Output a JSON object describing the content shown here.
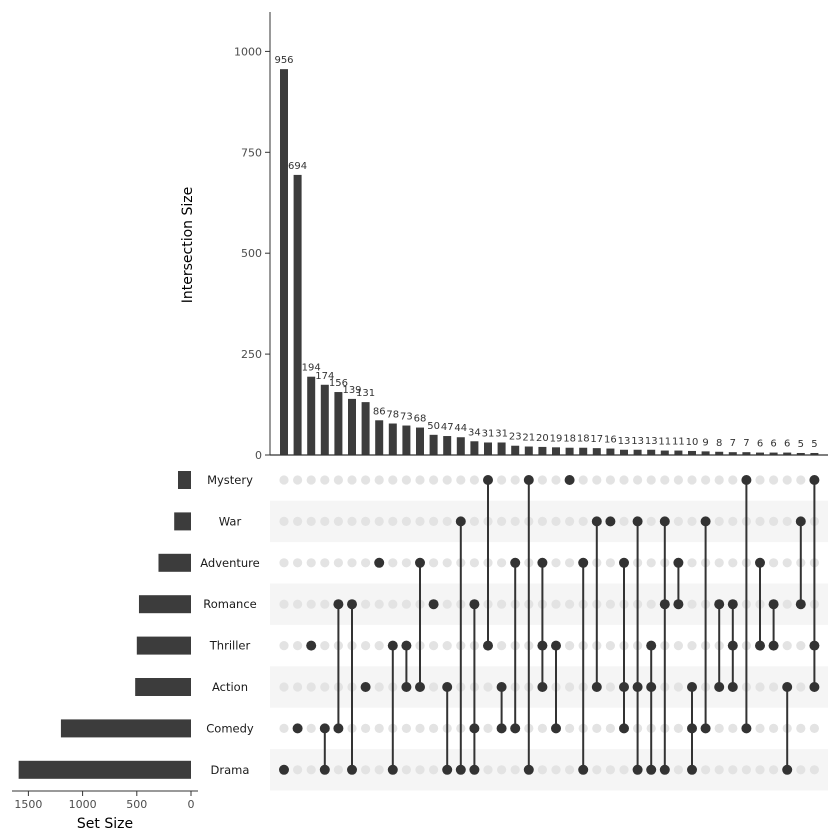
{
  "chart_data": {
    "type": "upset",
    "ylabel": "Intersection Size",
    "xlabel": "Set Size",
    "y_ticks": [
      0,
      250,
      500,
      750,
      1000
    ],
    "set_ticks": [
      1500,
      1000,
      500,
      0
    ],
    "sets": [
      "Mystery",
      "War",
      "Adventure",
      "Romance",
      "Thriller",
      "Action",
      "Comedy",
      "Drama"
    ],
    "set_sizes": [
      120,
      155,
      300,
      480,
      500,
      515,
      1200,
      1590
    ],
    "intersections": [
      {
        "size": 956,
        "label": "956",
        "sets": [
          "Drama"
        ]
      },
      {
        "size": 694,
        "label": "694",
        "sets": [
          "Comedy"
        ]
      },
      {
        "size": 194,
        "label": "194",
        "sets": [
          "Thriller"
        ]
      },
      {
        "size": 174,
        "label": "174",
        "sets": [
          "Comedy",
          "Drama"
        ]
      },
      {
        "size": 156,
        "label": "156",
        "sets": [
          "Romance",
          "Comedy"
        ]
      },
      {
        "size": 139,
        "label": "139",
        "sets": [
          "Romance",
          "Drama"
        ]
      },
      {
        "size": 131,
        "label": "131",
        "sets": [
          "Action"
        ]
      },
      {
        "size": 86,
        "label": "86",
        "sets": [
          "Adventure"
        ]
      },
      {
        "size": 78,
        "label": "78",
        "sets": [
          "Thriller",
          "Drama"
        ]
      },
      {
        "size": 73,
        "label": "73",
        "sets": [
          "Thriller",
          "Action"
        ]
      },
      {
        "size": 68,
        "label": "68",
        "sets": [
          "Adventure",
          "Action"
        ]
      },
      {
        "size": 50,
        "label": "50",
        "sets": [
          "Romance"
        ]
      },
      {
        "size": 47,
        "label": "47",
        "sets": [
          "Action",
          "Drama"
        ]
      },
      {
        "size": 44,
        "label": "44",
        "sets": [
          "War",
          "Drama"
        ]
      },
      {
        "size": 34,
        "label": "34",
        "sets": [
          "Romance",
          "Comedy",
          "Drama"
        ]
      },
      {
        "size": 31,
        "label": "31",
        "sets": [
          "Mystery",
          "Thriller"
        ]
      },
      {
        "size": 31,
        "label": "31",
        "sets": [
          "Action",
          "Comedy"
        ]
      },
      {
        "size": 23,
        "label": "23",
        "sets": [
          "Adventure",
          "Comedy"
        ]
      },
      {
        "size": 21,
        "label": "21",
        "sets": [
          "Mystery",
          "Drama"
        ]
      },
      {
        "size": 20,
        "label": "20",
        "sets": [
          "Adventure",
          "Thriller",
          "Action"
        ]
      },
      {
        "size": 19,
        "label": "19",
        "sets": [
          "Thriller",
          "Comedy"
        ]
      },
      {
        "size": 18,
        "label": "18",
        "sets": [
          "Mystery"
        ]
      },
      {
        "size": 18,
        "label": "18",
        "sets": [
          "Adventure",
          "Drama"
        ]
      },
      {
        "size": 17,
        "label": "17",
        "sets": [
          "War",
          "Action"
        ]
      },
      {
        "size": 16,
        "label": "16",
        "sets": [
          "War"
        ]
      },
      {
        "size": 13,
        "label": "13",
        "sets": [
          "Adventure",
          "Action",
          "Comedy"
        ]
      },
      {
        "size": 13,
        "label": "13",
        "sets": [
          "War",
          "Action",
          "Drama"
        ]
      },
      {
        "size": 13,
        "label": "13",
        "sets": [
          "Thriller",
          "Action",
          "Drama"
        ]
      },
      {
        "size": 11,
        "label": "11",
        "sets": [
          "War",
          "Romance",
          "Drama"
        ]
      },
      {
        "size": 11,
        "label": "11",
        "sets": [
          "Adventure",
          "Romance"
        ]
      },
      {
        "size": 10,
        "label": "10",
        "sets": [
          "Action",
          "Comedy",
          "Drama"
        ]
      },
      {
        "size": 9,
        "label": "9",
        "sets": [
          "War",
          "Comedy"
        ]
      },
      {
        "size": 8,
        "label": "8",
        "sets": [
          "Romance",
          "Action"
        ]
      },
      {
        "size": 7,
        "label": "7",
        "sets": [
          "Romance",
          "Thriller",
          "Action"
        ]
      },
      {
        "size": 7,
        "label": "7",
        "sets": [
          "Mystery",
          "Comedy"
        ]
      },
      {
        "size": 6,
        "label": "6",
        "sets": [
          "Adventure",
          "Thriller"
        ]
      },
      {
        "size": 6,
        "label": "6",
        "sets": [
          "Romance",
          "Thriller"
        ]
      },
      {
        "size": 6,
        "label": "6",
        "sets": [
          "Action",
          "Drama"
        ]
      },
      {
        "size": 5,
        "label": "5",
        "sets": [
          "War",
          "Romance"
        ]
      },
      {
        "size": 5,
        "label": "5",
        "sets": [
          "Mystery",
          "Thriller",
          "Action"
        ]
      }
    ],
    "colors": {
      "bar": "#3c3c3c",
      "dot_active": "#333333",
      "dot_inactive": "#e3e3e3",
      "stripe": "#f5f5f5",
      "axis": "#333333"
    }
  }
}
